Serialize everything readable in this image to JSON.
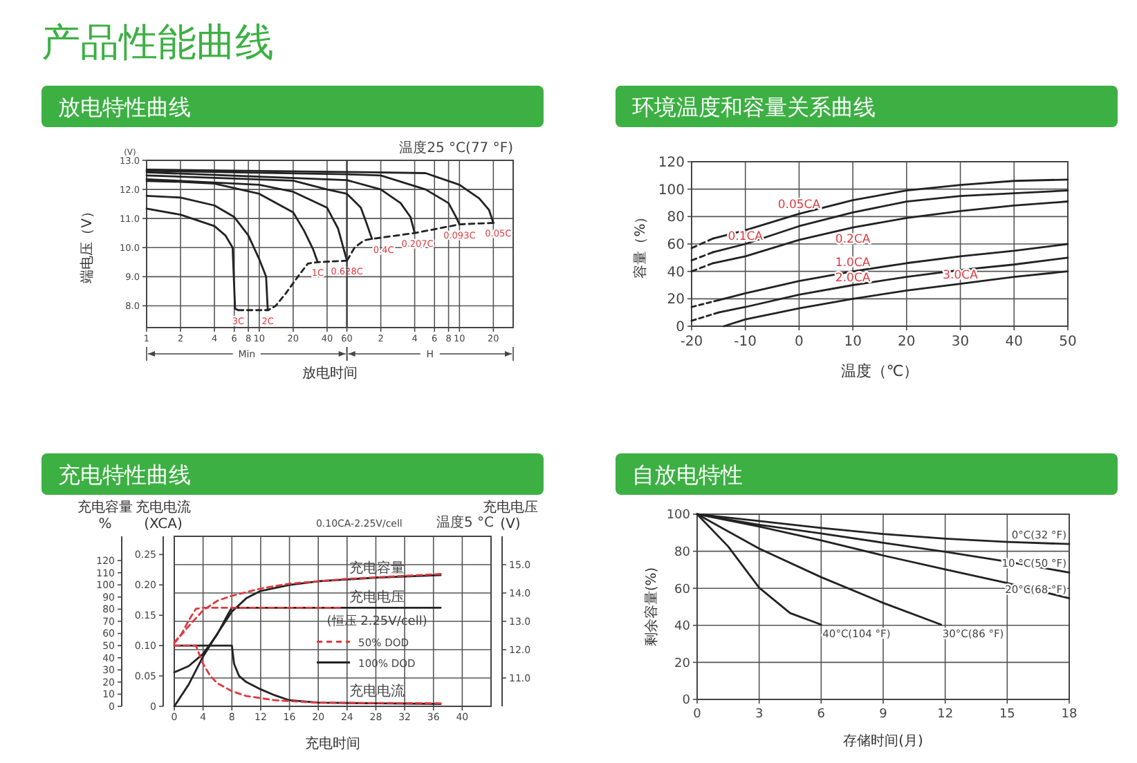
{
  "chart_data": [
    {
      "type": "line",
      "title": "放电特性曲线",
      "xlabel": "放电时间",
      "ylabel": "端电压（V）",
      "annotations": [
        "产品性能曲线",
        "(V)",
        "Min"
      ],
      "log": "x",
      "xlim": [
        1,
        60
      ],
      "xticks": [
        1,
        2,
        4,
        6,
        8,
        10,
        20,
        40,
        60
      ],
      "ylim": [
        7.25,
        13
      ],
      "yticks": [
        {
          "value": 8,
          "label": "8.0"
        },
        {
          "value": 9,
          "label": "9.0"
        },
        {
          "value": 10,
          "label": "10.0"
        },
        {
          "value": 11,
          "label": "11.0"
        },
        {
          "value": 12,
          "label": "12.0"
        },
        {
          "value": 13,
          "label": "13.0"
        }
      ],
      "grid": true,
      "series": [
        {
          "name": "3C",
          "color": "#222222",
          "x": [
            1,
            2,
            4,
            5,
            5.8,
            6.1,
            6.5
          ],
          "values": [
            11.34,
            11.13,
            10.74,
            10.42,
            10.0,
            7.9,
            7.85
          ]
        },
        {
          "name": "2C",
          "color": "#222222",
          "x": [
            1,
            2,
            4,
            6,
            8,
            10,
            11.5,
            11.9
          ],
          "values": [
            11.78,
            11.72,
            11.45,
            11.05,
            10.42,
            9.6,
            9.0,
            7.85
          ]
        },
        {
          "name": "1C",
          "color": "#222222",
          "x": [
            1,
            2,
            4,
            10,
            20,
            25,
            30,
            33
          ],
          "values": [
            12.29,
            12.26,
            12.2,
            11.85,
            11.21,
            10.58,
            9.95,
            9.5
          ]
        },
        {
          "name": "0.628C",
          "color": "#222222",
          "x": [
            1,
            10,
            20,
            40,
            50,
            60
          ],
          "values": [
            12.35,
            12.16,
            11.92,
            11.37,
            10.66,
            9.55
          ]
        },
        {
          "color": "#222222",
          "x": [
            1,
            20,
            40,
            60
          ],
          "values": [
            12.48,
            12.3,
            12.0,
            11.85
          ]
        },
        {
          "color": "#222222",
          "x": [
            1,
            60
          ],
          "values": [
            12.59,
            12.32
          ]
        },
        {
          "color": "#222222",
          "x": [
            1,
            60
          ],
          "values": [
            12.64,
            12.52
          ]
        },
        {
          "color": "#222222",
          "x": [
            1,
            60
          ],
          "values": [
            12.68,
            12.6
          ]
        },
        {
          "color": "#222222",
          "line_style": "dashed",
          "x": [
            6.5,
            12,
            14,
            17,
            22,
            27,
            33,
            60
          ],
          "values": [
            7.85,
            7.85,
            8.0,
            8.4,
            9.0,
            9.45,
            9.5,
            9.55
          ]
        }
      ]
    },
    {
      "type": "line",
      "annotations": [
        "温度25 °C(77 °F)",
        "H"
      ],
      "log": "x",
      "xlim": [
        1,
        30
      ],
      "xticks": [
        2,
        4,
        6,
        8,
        10,
        20
      ],
      "ylim": [
        7.25,
        13
      ],
      "yticks": [
        8,
        9,
        10,
        11,
        12,
        13
      ],
      "tick_labels": "x",
      "grid": true,
      "series": [
        {
          "name": "0.4C",
          "color": "#222222",
          "x": [
            1,
            1.33,
            1.5,
            1.67
          ],
          "values": [
            11.85,
            11.37,
            10.82,
            10.3
          ]
        },
        {
          "name": "0.207C",
          "color": "#222222",
          "x": [
            1,
            2,
            3,
            3.67,
            4
          ],
          "values": [
            12.32,
            12.0,
            11.53,
            11.05,
            10.5
          ]
        },
        {
          "name": "0.093C",
          "color": "#222222",
          "x": [
            1,
            2,
            5,
            8,
            9.33,
            10
          ],
          "values": [
            12.52,
            12.48,
            12.0,
            11.53,
            11.05,
            10.8
          ]
        },
        {
          "name": "0.05C",
          "color": "#222222",
          "x": [
            1,
            5,
            10,
            15,
            18.33,
            20
          ],
          "values": [
            12.6,
            12.56,
            12.16,
            11.69,
            11.29,
            10.85
          ]
        },
        {
          "color": "#222222",
          "line_style": "dashed",
          "x": [
            1,
            1.17,
            1.42,
            1.67,
            4,
            10,
            20
          ],
          "values": [
            9.55,
            10.0,
            10.25,
            10.3,
            10.5,
            10.8,
            10.85
          ]
        }
      ]
    },
    {
      "type": "line",
      "title": "环境温度和容量关系曲线",
      "xlabel": "温度（℃）",
      "ylabel": "容量（%）",
      "xlim": [
        -20,
        50
      ],
      "xticks": [
        -20,
        -10,
        0,
        10,
        20,
        30,
        40,
        50
      ],
      "ylim": [
        0,
        120
      ],
      "yticks": [
        0,
        20,
        40,
        60,
        80,
        100,
        120
      ],
      "grid": true,
      "series": [
        {
          "name": "0.05CA",
          "color": "#222222",
          "x": [
            -16,
            -10,
            0,
            10,
            20,
            30,
            40,
            50
          ],
          "values": [
            64,
            70,
            82,
            92,
            99,
            103,
            106,
            107
          ]
        },
        {
          "name": "0.1CA",
          "color": "#222222",
          "x": [
            -16,
            -10,
            0,
            10,
            20,
            30,
            40,
            50
          ],
          "values": [
            54,
            60,
            73,
            83,
            91,
            95,
            97,
            99
          ]
        },
        {
          "name": "0.2CA",
          "color": "#222222",
          "x": [
            -16,
            -10,
            0,
            10,
            20,
            30,
            40,
            50
          ],
          "values": [
            46,
            51,
            63,
            72,
            79,
            84,
            88,
            91
          ]
        },
        {
          "name": "1.0CA",
          "color": "#222222",
          "x": [
            -15,
            -10,
            0,
            10,
            20,
            30,
            40,
            50
          ],
          "values": [
            19,
            24,
            33,
            40,
            46,
            51,
            55,
            60
          ]
        },
        {
          "name": "2.0CA",
          "color": "#222222",
          "x": [
            -15,
            -10,
            0,
            10,
            20,
            30,
            40,
            50
          ],
          "values": [
            10,
            14,
            23,
            30,
            36,
            41,
            45,
            50
          ]
        },
        {
          "name": "3.0CA",
          "color": "#222222",
          "x": [
            -14,
            -10,
            0,
            10,
            20,
            30,
            40,
            50
          ],
          "values": [
            0,
            5,
            13,
            20,
            26,
            31,
            36,
            40
          ]
        },
        {
          "color": "#222222",
          "line_style": "dashed",
          "x": [
            -20,
            -16
          ],
          "values": [
            57,
            64
          ]
        },
        {
          "color": "#222222",
          "line_style": "dashed",
          "x": [
            -20,
            -16
          ],
          "values": [
            48,
            54
          ]
        },
        {
          "color": "#222222",
          "line_style": "dashed",
          "x": [
            -20,
            -16
          ],
          "values": [
            40,
            46
          ]
        },
        {
          "color": "#222222",
          "line_style": "dashed",
          "x": [
            -20,
            -15
          ],
          "values": [
            14,
            19
          ]
        },
        {
          "color": "#222222",
          "line_style": "dashed",
          "x": [
            -20,
            -15
          ],
          "values": [
            4,
            10
          ]
        }
      ]
    },
    {
      "type": "line",
      "title": "充电特性曲线",
      "xlabel": "充电时间",
      "ylabel": "充电电流\n(XCA)",
      "y2label": "充电电压\n(V)",
      "y3label": "充电容量\n%",
      "annotations": [
        "0.10CA-2.25V/cell",
        "温度5 °C",
        "充电容量",
        "充电电压",
        "(恒压 2.25V/cell)",
        "充电电流"
      ],
      "xlim": [
        0,
        44
      ],
      "xticks": [
        0,
        4,
        8,
        12,
        16,
        20,
        24,
        28,
        32,
        36,
        40
      ],
      "ylim": [
        0,
        0.28
      ],
      "yticks": [
        0,
        0.05,
        {
          "value": 0.1,
          "label": "0.10"
        },
        0.15,
        {
          "value": 0.2,
          "label": "0.20"
        },
        0.25
      ],
      "y2lim": [
        10,
        16
      ],
      "y2ticks": [
        {
          "value": 11,
          "label": "11.0"
        },
        {
          "value": 12,
          "label": "12.0"
        },
        {
          "value": 13,
          "label": "13.0"
        },
        {
          "value": 14,
          "label": "14.0"
        },
        {
          "value": 15,
          "label": "15.0"
        }
      ],
      "y3lim": [
        0,
        140
      ],
      "y3ticks": [
        0,
        10,
        20,
        30,
        40,
        50,
        60,
        70,
        80,
        90,
        100,
        110,
        120
      ],
      "grid": true,
      "legend": "right",
      "series": [
        {
          "name": "50% DOD",
          "color": "#e0393e",
          "line_style": "dashed",
          "axis": "y",
          "x": [
            0,
            3,
            4,
            5,
            6,
            8,
            10,
            14,
            20,
            37
          ],
          "values": [
            0.1,
            0.1,
            0.07,
            0.05,
            0.038,
            0.025,
            0.017,
            0.01,
            0.006,
            0.005
          ]
        },
        {
          "color": "#e0393e",
          "line_style": "dashed",
          "axis": "y2",
          "x": [
            0,
            1,
            2,
            3,
            4,
            23
          ],
          "values": [
            12.26,
            12.55,
            13.03,
            13.44,
            13.48,
            13.48
          ]
        },
        {
          "color": "#e0393e",
          "line_style": "dashed",
          "axis": "y3",
          "x": [
            0,
            2,
            4,
            6,
            8,
            12,
            16,
            24,
            37
          ],
          "values": [
            52,
            66,
            79,
            87,
            91,
            97,
            101,
            105,
            109
          ]
        },
        {
          "name": "100% DOD",
          "color": "#222222",
          "axis": "y",
          "x": [
            0,
            8,
            8.3,
            9,
            10,
            12,
            14,
            16,
            20,
            28,
            37
          ],
          "values": [
            0.1,
            0.1,
            0.07,
            0.05,
            0.04,
            0.028,
            0.018,
            0.01,
            0.006,
            0.005,
            0.004
          ]
        },
        {
          "color": "#222222",
          "axis": "y2",
          "x": [
            0,
            2,
            4,
            6,
            7.5,
            8,
            37
          ],
          "values": [
            11.2,
            11.42,
            11.85,
            12.55,
            13.27,
            13.48,
            13.48
          ]
        },
        {
          "color": "#222222",
          "axis": "y3",
          "x": [
            0,
            2,
            4,
            6,
            8,
            10,
            12,
            16,
            20,
            28,
            37
          ],
          "values": [
            0,
            18,
            41,
            60,
            78,
            89,
            95,
            100,
            103,
            106,
            108
          ]
        }
      ]
    },
    {
      "type": "line",
      "title": "自放电特性",
      "xlabel": "存储时间(月)",
      "ylabel": "剩余容量(%)",
      "xlim": [
        0,
        18
      ],
      "xticks": [
        0,
        3,
        6,
        9,
        12,
        15,
        18
      ],
      "ylim": [
        0,
        100
      ],
      "yticks": [
        0,
        20,
        40,
        60,
        80,
        100
      ],
      "grid": true,
      "series": [
        {
          "name": "0°C(32 °F)",
          "color": "#222222",
          "x": [
            0,
            3,
            6,
            9,
            12,
            15,
            18
          ],
          "values": [
            100,
            96.3,
            92.6,
            89.3,
            86.8,
            85,
            83.9
          ]
        },
        {
          "name": "10 °C(50 °F)",
          "color": "#222222",
          "x": [
            0,
            3,
            6,
            9,
            12,
            15,
            18
          ],
          "values": [
            100,
            94.3,
            89.6,
            84.6,
            79.7,
            74.4,
            68.5
          ]
        },
        {
          "name": "20°C(68 °F)",
          "color": "#222222",
          "x": [
            0,
            3,
            6,
            9,
            12,
            15,
            18
          ],
          "values": [
            100,
            93.3,
            85.9,
            77.7,
            70.2,
            62.8,
            54.6
          ]
        },
        {
          "name": "30°C(86 °F)",
          "color": "#222222",
          "x": [
            0,
            3,
            6,
            9,
            11.8
          ],
          "values": [
            100,
            81.4,
            66,
            52.1,
            40.4
          ]
        },
        {
          "name": "40°C(104 °F)",
          "color": "#222222",
          "x": [
            0,
            1.5,
            3,
            4.5,
            6
          ],
          "values": [
            100,
            82.6,
            60.3,
            46.6,
            40.4
          ]
        }
      ]
    }
  ]
}
